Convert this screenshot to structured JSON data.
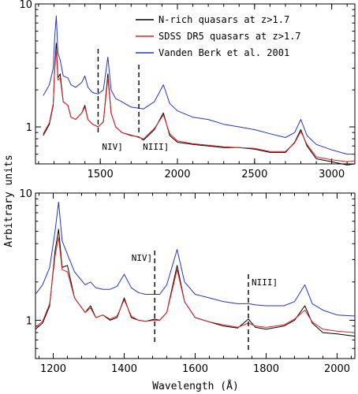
{
  "y_axis_label": "Arbitrary units",
  "x_axis_label": "Wavelength (Å)",
  "chart_data": [
    {
      "type": "line",
      "panel": "top",
      "xlim": [
        1080,
        3150
      ],
      "ylim": [
        0.5,
        10
      ],
      "yscale": "log",
      "xticks": [
        1500,
        2000,
        2500,
        3000
      ],
      "yticks": [
        1,
        10
      ],
      "legend_position": "top-right",
      "annotations": [
        {
          "text": "NIV]",
          "x": 1486
        },
        {
          "text": "NIII]",
          "x": 1750
        }
      ],
      "series": [
        {
          "name": "N-rich quasars at z>1.7",
          "color": "#000000",
          "x": [
            1130,
            1170,
            1195,
            1205,
            1215,
            1225,
            1240,
            1260,
            1290,
            1310,
            1340,
            1380,
            1400,
            1420,
            1450,
            1486,
            1520,
            1549,
            1570,
            1600,
            1640,
            1700,
            1750,
            1780,
            1850,
            1909,
            1950,
            2000,
            2100,
            2200,
            2300,
            2400,
            2500,
            2600,
            2700,
            2760,
            2800,
            2840,
            2900,
            3000,
            3100,
            3150
          ],
          "y": [
            0.85,
            1.05,
            1.5,
            3.2,
            4.8,
            2.5,
            2.7,
            1.6,
            1.5,
            1.2,
            1.15,
            1.3,
            1.5,
            1.15,
            1.05,
            1.0,
            1.1,
            2.7,
            1.3,
            1.0,
            0.9,
            0.85,
            0.83,
            0.78,
            0.95,
            1.3,
            0.85,
            0.75,
            0.72,
            0.7,
            0.68,
            0.68,
            0.66,
            0.62,
            0.62,
            0.75,
            0.95,
            0.7,
            0.55,
            0.52,
            0.49,
            0.5
          ]
        },
        {
          "name": "SDSS DR5 quasars at z>1.7",
          "color": "#dd2222",
          "x": [
            1130,
            1170,
            1195,
            1205,
            1215,
            1225,
            1240,
            1260,
            1290,
            1310,
            1340,
            1380,
            1400,
            1420,
            1450,
            1486,
            1520,
            1549,
            1570,
            1600,
            1640,
            1700,
            1750,
            1780,
            1850,
            1909,
            1950,
            2000,
            2100,
            2200,
            2300,
            2400,
            2500,
            2600,
            2700,
            2760,
            2800,
            2840,
            2900,
            3000,
            3100,
            3150
          ],
          "y": [
            0.88,
            1.08,
            1.55,
            3.0,
            4.3,
            2.4,
            2.5,
            1.6,
            1.5,
            1.2,
            1.15,
            1.3,
            1.45,
            1.15,
            1.05,
            1.0,
            1.1,
            2.5,
            1.3,
            1.0,
            0.9,
            0.86,
            0.82,
            0.8,
            0.97,
            1.25,
            0.88,
            0.77,
            0.73,
            0.71,
            0.69,
            0.68,
            0.67,
            0.63,
            0.63,
            0.74,
            0.92,
            0.72,
            0.57,
            0.54,
            0.52,
            0.53
          ]
        },
        {
          "name": "Vanden Berk et al. 2001",
          "color": "#2233cc",
          "x": [
            1130,
            1170,
            1195,
            1205,
            1215,
            1225,
            1240,
            1260,
            1290,
            1310,
            1340,
            1380,
            1400,
            1420,
            1450,
            1486,
            1520,
            1549,
            1570,
            1600,
            1640,
            1700,
            1750,
            1780,
            1850,
            1909,
            1950,
            2000,
            2100,
            2200,
            2300,
            2400,
            2500,
            2600,
            2700,
            2760,
            2800,
            2840,
            2900,
            3000,
            3100,
            3150
          ],
          "y": [
            1.8,
            2.2,
            3.0,
            5.5,
            8.0,
            4.0,
            3.5,
            2.6,
            2.5,
            2.2,
            2.1,
            2.3,
            2.6,
            2.1,
            1.9,
            1.85,
            2.0,
            3.7,
            2.0,
            1.7,
            1.6,
            1.45,
            1.42,
            1.4,
            1.6,
            2.2,
            1.55,
            1.35,
            1.2,
            1.15,
            1.05,
            1.0,
            0.95,
            0.88,
            0.82,
            0.9,
            1.15,
            0.85,
            0.72,
            0.65,
            0.6,
            0.6
          ]
        }
      ]
    },
    {
      "type": "line",
      "panel": "bottom",
      "xlim": [
        1150,
        2050
      ],
      "ylim": [
        0.5,
        10
      ],
      "yscale": "log",
      "xticks": [
        1200,
        1400,
        1600,
        1800,
        2000
      ],
      "yticks": [
        1,
        10
      ],
      "annotations": [
        {
          "text": "NIV]",
          "x": 1486
        },
        {
          "text": "NIII]",
          "x": 1750
        }
      ],
      "series": [
        {
          "name": "N-rich quasars at z>1.7",
          "color": "#000000",
          "x": [
            1150,
            1170,
            1190,
            1205,
            1215,
            1225,
            1240,
            1260,
            1290,
            1305,
            1320,
            1340,
            1360,
            1380,
            1400,
            1420,
            1440,
            1460,
            1486,
            1500,
            1520,
            1549,
            1570,
            1600,
            1640,
            1680,
            1720,
            1750,
            1770,
            1800,
            1850,
            1880,
            1909,
            1930,
            1960,
            2000,
            2050
          ],
          "y": [
            0.85,
            0.95,
            1.3,
            3.5,
            5.2,
            2.6,
            2.7,
            1.5,
            1.15,
            1.3,
            1.05,
            1.1,
            1.0,
            1.05,
            1.5,
            1.05,
            1.0,
            0.98,
            1.02,
            1.0,
            1.15,
            2.7,
            1.4,
            1.05,
            0.97,
            0.9,
            0.87,
            1.02,
            0.88,
            0.85,
            0.9,
            1.0,
            1.3,
            0.95,
            0.8,
            0.78,
            0.75
          ]
        },
        {
          "name": "SDSS DR5 quasars at z>1.7",
          "color": "#dd2222",
          "x": [
            1150,
            1170,
            1190,
            1205,
            1215,
            1225,
            1240,
            1260,
            1290,
            1305,
            1320,
            1340,
            1360,
            1380,
            1400,
            1420,
            1440,
            1460,
            1486,
            1500,
            1520,
            1549,
            1570,
            1600,
            1640,
            1680,
            1720,
            1750,
            1770,
            1800,
            1850,
            1880,
            1909,
            1930,
            1960,
            2000,
            2050
          ],
          "y": [
            0.88,
            0.98,
            1.35,
            3.2,
            4.5,
            2.5,
            2.4,
            1.5,
            1.15,
            1.25,
            1.05,
            1.1,
            1.02,
            1.08,
            1.45,
            1.08,
            1.0,
            0.98,
            1.0,
            1.0,
            1.15,
            2.5,
            1.4,
            1.05,
            0.97,
            0.92,
            0.88,
            0.95,
            0.9,
            0.88,
            0.92,
            1.02,
            1.2,
            0.97,
            0.85,
            0.82,
            0.8
          ]
        },
        {
          "name": "Vanden Berk et al. 2001",
          "color": "#2233cc",
          "x": [
            1150,
            1170,
            1190,
            1205,
            1215,
            1225,
            1240,
            1260,
            1290,
            1305,
            1320,
            1340,
            1360,
            1380,
            1400,
            1420,
            1440,
            1460,
            1486,
            1500,
            1520,
            1549,
            1570,
            1600,
            1640,
            1680,
            1720,
            1750,
            1770,
            1800,
            1850,
            1880,
            1909,
            1930,
            1960,
            2000,
            2050
          ],
          "y": [
            1.6,
            1.9,
            2.6,
            5.0,
            8.5,
            4.2,
            3.3,
            2.4,
            1.9,
            2.0,
            1.8,
            1.75,
            1.75,
            1.85,
            2.3,
            1.8,
            1.65,
            1.6,
            1.6,
            1.6,
            1.9,
            3.6,
            2.0,
            1.6,
            1.5,
            1.4,
            1.35,
            1.35,
            1.32,
            1.3,
            1.3,
            1.4,
            1.9,
            1.35,
            1.2,
            1.1,
            1.08
          ]
        }
      ]
    }
  ]
}
